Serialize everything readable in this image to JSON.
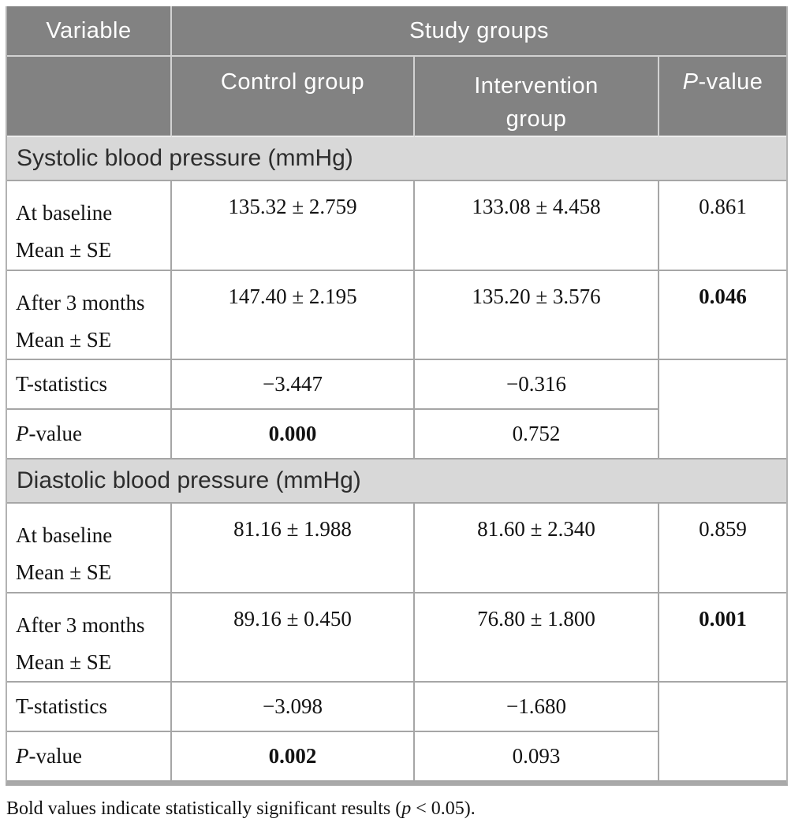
{
  "colors": {
    "header_bg": "#828282",
    "header_text": "#ffffff",
    "section_band_bg": "#d8d8d8",
    "cell_border": "#a6a6a6",
    "bottom_rule": "#a9a9a9"
  },
  "header": {
    "variable": "Variable",
    "study_groups": "Study groups",
    "control": "Control group",
    "intervention": "Intervention group",
    "pvalue_italic": "P",
    "pvalue_rest": "-value"
  },
  "sections": [
    {
      "title": "Systolic blood pressure (mmHg)",
      "baseline": {
        "label1": "At baseline",
        "label2": "Mean ± SE",
        "control": "135.32 ± 2.759",
        "intervention": "133.08 ± 4.458",
        "p": "0.861",
        "p_bold": false
      },
      "after": {
        "label1": "After 3 months",
        "label2": "Mean ± SE",
        "control": "147.40 ± 2.195",
        "intervention": "135.20 ± 3.576",
        "p": "0.046",
        "p_bold": true
      },
      "tstat": {
        "label": "T-statistics",
        "control": "−3.447",
        "intervention": "−0.316"
      },
      "pvalue": {
        "label_italic": "P",
        "label_rest": "-value",
        "control": "0.000",
        "control_bold": true,
        "intervention": "0.752",
        "intervention_bold": false
      }
    },
    {
      "title": "Diastolic blood pressure (mmHg)",
      "baseline": {
        "label1": "At baseline",
        "label2": "Mean ± SE",
        "control": "81.16 ± 1.988",
        "intervention": "81.60 ± 2.340",
        "p": "0.859",
        "p_bold": false
      },
      "after": {
        "label1": "After 3 months",
        "label2": "Mean ± SE",
        "control": "89.16 ± 0.450",
        "intervention": "76.80 ± 1.800",
        "p": "0.001",
        "p_bold": true
      },
      "tstat": {
        "label": "T-statistics",
        "control": "−3.098",
        "intervention": "−1.680"
      },
      "pvalue": {
        "label_italic": "P",
        "label_rest": "-value",
        "control": "0.002",
        "control_bold": true,
        "intervention": "0.093",
        "intervention_bold": false
      }
    }
  ],
  "footnote": {
    "prefix": "Bold values indicate statistically significant results (",
    "p_italic": "p",
    "suffix": " < 0.05)."
  }
}
